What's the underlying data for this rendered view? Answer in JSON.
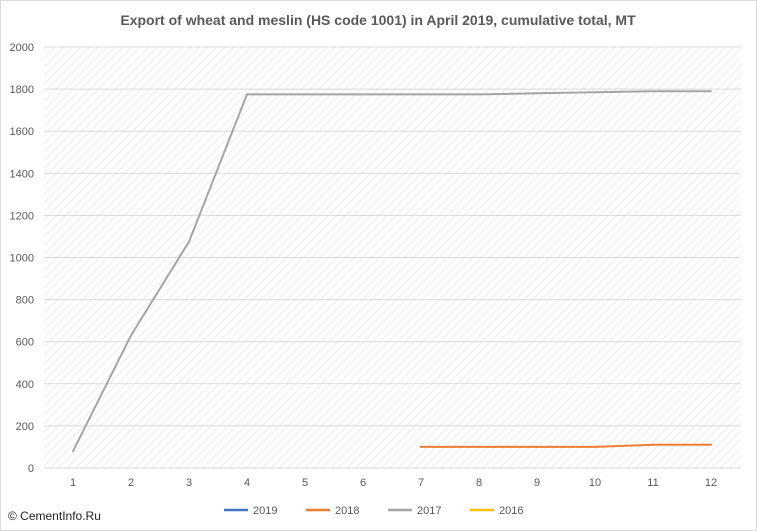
{
  "chart_data": {
    "type": "line",
    "title": "Export of wheat and meslin (HS code 1001) in April 2019, cumulative total, MT",
    "xlabel": "",
    "ylabel": "",
    "categories": [
      1,
      2,
      3,
      4,
      5,
      6,
      7,
      8,
      9,
      10,
      11,
      12
    ],
    "ylim": [
      0,
      2000
    ],
    "yticks": [
      0,
      200,
      400,
      600,
      800,
      1000,
      1200,
      1400,
      1600,
      1800,
      2000
    ],
    "grid": true,
    "legend_position": "bottom",
    "series": [
      {
        "name": "2019",
        "color": "#4472C4",
        "values": [
          null,
          null,
          null,
          null,
          null,
          null,
          null,
          null,
          null,
          null,
          null,
          null
        ]
      },
      {
        "name": "2018",
        "color": "#ED7D31",
        "values": [
          null,
          null,
          null,
          null,
          null,
          null,
          100,
          100,
          100,
          100,
          110,
          110
        ]
      },
      {
        "name": "2017",
        "color": "#A5A5A5",
        "values": [
          80,
          630,
          1075,
          1775,
          1775,
          1775,
          1775,
          1775,
          1780,
          1785,
          1790,
          1790
        ]
      },
      {
        "name": "2016",
        "color": "#FFC000",
        "values": [
          null,
          null,
          null,
          null,
          null,
          null,
          null,
          null,
          null,
          null,
          null,
          null
        ]
      }
    ]
  },
  "watermark": "© CementInfo.Ru"
}
